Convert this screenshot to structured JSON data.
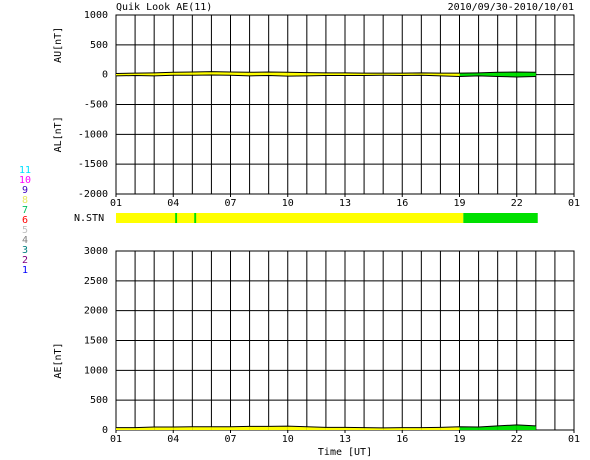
{
  "stations": [
    {
      "count": 11,
      "color": "#00e0ff"
    },
    {
      "count": 10,
      "color": "#ff00ff"
    },
    {
      "count": 9,
      "color": "#4000c0"
    },
    {
      "count": 8,
      "color": "#e8e860"
    },
    {
      "count": 7,
      "color": "#00c060"
    },
    {
      "count": 6,
      "color": "#ff0000"
    },
    {
      "count": 5,
      "color": "#c0c0c0"
    },
    {
      "count": 4,
      "color": "#808080"
    },
    {
      "count": 3,
      "color": "#008080"
    },
    {
      "count": 2,
      "color": "#800080"
    },
    {
      "count": 1,
      "color": "#0000ff"
    }
  ],
  "nstn": {
    "label": "N.STN",
    "segments": [
      {
        "start": 0,
        "end": 18.2,
        "color": "#ffff00"
      },
      {
        "start": 3.1,
        "end": 3.2,
        "color": "#00e000"
      },
      {
        "start": 4.1,
        "end": 4.2,
        "color": "#00e000"
      },
      {
        "start": 18.2,
        "end": 22.1,
        "color": "#00e000"
      }
    ]
  },
  "chart_data": [
    {
      "type": "line",
      "title": "Quik Look AE(11)",
      "subtitle": "2010/09/30-2010/10/01",
      "ylabels": [
        "AU[nT]",
        "AL[nT]"
      ],
      "xlim": [
        0,
        24
      ],
      "xticks": [
        {
          "value": 0,
          "label": "01"
        },
        {
          "value": 3,
          "label": "04"
        },
        {
          "value": 6,
          "label": "07"
        },
        {
          "value": 9,
          "label": "10"
        },
        {
          "value": 12,
          "label": "13"
        },
        {
          "value": 15,
          "label": "16"
        },
        {
          "value": 18,
          "label": "19"
        },
        {
          "value": 21,
          "label": "22"
        },
        {
          "value": 24,
          "label": "01"
        }
      ],
      "xgrid": [
        0,
        1,
        2,
        3,
        4,
        5,
        6,
        7,
        8,
        9,
        10,
        11,
        12,
        13,
        14,
        15,
        16,
        17,
        18,
        19,
        20,
        21,
        22,
        23,
        24
      ],
      "ylim": [
        -2000,
        1000
      ],
      "yticks": [
        1000,
        500,
        0,
        -500,
        -1000,
        -1500,
        -2000
      ],
      "x": [
        0,
        1,
        2,
        3,
        4,
        5,
        6,
        7,
        8,
        9,
        10,
        11,
        12,
        13,
        14,
        15,
        16,
        17,
        18,
        19,
        20,
        21,
        22
      ],
      "series": [
        {
          "color": "#000000",
          "values": [
            20,
            25,
            30,
            40,
            45,
            50,
            45,
            40,
            45,
            40,
            35,
            30,
            30,
            25,
            25,
            25,
            30,
            25,
            25,
            30,
            40,
            45,
            40
          ]
        },
        {
          "color": "#000000",
          "values": [
            -20,
            -15,
            -20,
            -10,
            -10,
            -5,
            -10,
            -20,
            -15,
            -25,
            -20,
            -15,
            -15,
            -15,
            -10,
            -15,
            -10,
            -20,
            -30,
            -20,
            -30,
            -40,
            -30
          ]
        }
      ]
    },
    {
      "type": "line",
      "ylabels": [
        "AE[nT]"
      ],
      "xlabel": "Time [UT]",
      "xlim": [
        0,
        24
      ],
      "xticks": [
        {
          "value": 0,
          "label": "01"
        },
        {
          "value": 3,
          "label": "04"
        },
        {
          "value": 6,
          "label": "07"
        },
        {
          "value": 9,
          "label": "10"
        },
        {
          "value": 12,
          "label": "13"
        },
        {
          "value": 15,
          "label": "16"
        },
        {
          "value": 18,
          "label": "19"
        },
        {
          "value": 21,
          "label": "22"
        },
        {
          "value": 24,
          "label": "01"
        }
      ],
      "xgrid": [
        0,
        1,
        2,
        3,
        4,
        5,
        6,
        7,
        8,
        9,
        10,
        11,
        12,
        13,
        14,
        15,
        16,
        17,
        18,
        19,
        20,
        21,
        22,
        23,
        24
      ],
      "ylim": [
        0,
        3000
      ],
      "yticks": [
        3000,
        2500,
        2000,
        1500,
        1000,
        500,
        0
      ],
      "x": [
        0,
        1,
        2,
        3,
        4,
        5,
        6,
        7,
        8,
        9,
        10,
        11,
        12,
        13,
        14,
        15,
        16,
        17,
        18,
        19,
        20,
        21,
        22
      ],
      "series": [
        {
          "color": "#000000",
          "values": [
            40,
            40,
            50,
            50,
            55,
            55,
            55,
            60,
            60,
            65,
            55,
            45,
            45,
            40,
            35,
            40,
            40,
            45,
            55,
            50,
            70,
            85,
            70
          ]
        }
      ]
    }
  ]
}
